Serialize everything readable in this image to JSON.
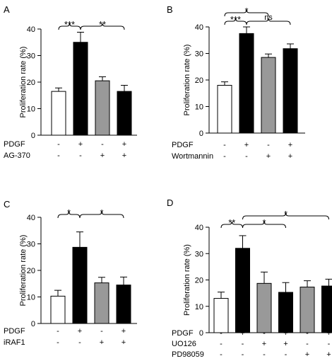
{
  "chart_data": [
    {
      "panel_label": "A",
      "type": "bar",
      "ylabel": "Proliferation rate (%)",
      "ylim": [
        0,
        40
      ],
      "yticks": [
        0,
        10,
        20,
        30,
        40
      ],
      "values": [
        16.5,
        35,
        20.5,
        16.5
      ],
      "errors": [
        1.3,
        3.8,
        1.5,
        2.3
      ],
      "bar_colors": [
        "#ffffff",
        "#000000",
        "#999999",
        "#000000"
      ],
      "treatments": [
        {
          "name": "PDGF",
          "marks": [
            "-",
            "+",
            "-",
            "+"
          ]
        },
        {
          "name": "AG-370",
          "marks": [
            "-",
            "-",
            "+",
            "+"
          ]
        }
      ],
      "significance": [
        {
          "from": 0,
          "to": 1,
          "label": "***"
        },
        {
          "from": 1,
          "to": 3,
          "label": "**"
        }
      ]
    },
    {
      "panel_label": "B",
      "type": "bar",
      "ylabel": "Proliferation rate (%)",
      "ylim": [
        0,
        40
      ],
      "yticks": [
        0,
        10,
        20,
        30,
        40
      ],
      "values": [
        18,
        37.5,
        28.5,
        31.8
      ],
      "errors": [
        1.3,
        2.5,
        1.3,
        1.8
      ],
      "bar_colors": [
        "#ffffff",
        "#000000",
        "#999999",
        "#000000"
      ],
      "treatments": [
        {
          "name": "PDGF",
          "marks": [
            "-",
            "+",
            "-",
            "+"
          ]
        },
        {
          "name": "Wortmannin",
          "marks": [
            "-",
            "-",
            "+",
            "+"
          ]
        }
      ],
      "significance": [
        {
          "from": 0,
          "to": 1,
          "label": "***"
        },
        {
          "from": 0,
          "to": 2,
          "label": "*"
        },
        {
          "from": 1,
          "to": 3,
          "label": "ns"
        }
      ]
    },
    {
      "panel_label": "C",
      "type": "bar",
      "ylabel": "Proliferation rate (%)",
      "ylim": [
        0,
        40
      ],
      "yticks": [
        0,
        10,
        20,
        30,
        40
      ],
      "values": [
        10.3,
        28.7,
        15.3,
        14.5
      ],
      "errors": [
        2.2,
        5.8,
        2.1,
        3.0
      ],
      "bar_colors": [
        "#ffffff",
        "#000000",
        "#999999",
        "#000000"
      ],
      "treatments": [
        {
          "name": "PDGF",
          "marks": [
            "-",
            "+",
            "-",
            "+"
          ]
        },
        {
          "name": "iRAF1",
          "marks": [
            "-",
            "-",
            "+",
            "+"
          ]
        }
      ],
      "significance": [
        {
          "from": 0,
          "to": 1,
          "label": "*"
        },
        {
          "from": 1,
          "to": 3,
          "label": "*"
        }
      ]
    },
    {
      "panel_label": "D",
      "type": "bar",
      "ylabel": "Proliferation rate (%)",
      "ylim": [
        0,
        40
      ],
      "yticks": [
        0,
        10,
        20,
        30,
        40
      ],
      "values": [
        13,
        32,
        18.7,
        15.3,
        17.3,
        17.7
      ],
      "errors": [
        2.4,
        4.8,
        4.3,
        3.7,
        2.4,
        2.6
      ],
      "bar_colors": [
        "#ffffff",
        "#000000",
        "#999999",
        "#000000",
        "#999999",
        "#000000"
      ],
      "treatments": [
        {
          "name": "PDGF",
          "marks": [
            "-",
            "+",
            "-",
            "+",
            "-",
            "+"
          ]
        },
        {
          "name": "UO126",
          "marks": [
            "-",
            "-",
            "+",
            "+",
            "-",
            "-"
          ]
        },
        {
          "name": "PD98059",
          "marks": [
            "-",
            "-",
            "-",
            "-",
            "+",
            "+"
          ]
        }
      ],
      "significance": [
        {
          "from": 0,
          "to": 1,
          "label": "**"
        },
        {
          "from": 1,
          "to": 3,
          "label": "*"
        },
        {
          "from": 1,
          "to": 5,
          "label": "*"
        }
      ]
    }
  ]
}
